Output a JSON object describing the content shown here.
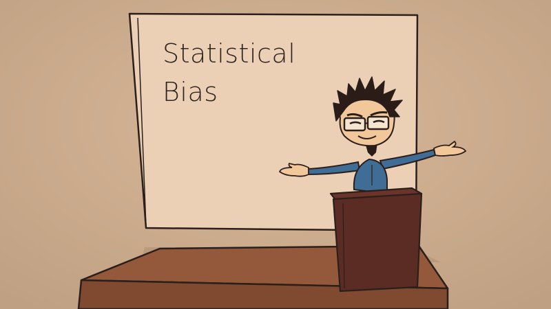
{
  "board": {
    "line1": "Statistical",
    "line2": "Bias"
  },
  "colors": {
    "wall": "#c9a888",
    "board": "#e8cdb3",
    "stage_top": "#93593b",
    "stage_front": "#7e4a30",
    "podium": "#5a2c24",
    "shirt": "#3f6d96",
    "skin": "#f2c79a",
    "hair": "#2b1c17",
    "outline": "#2a1f1b"
  }
}
